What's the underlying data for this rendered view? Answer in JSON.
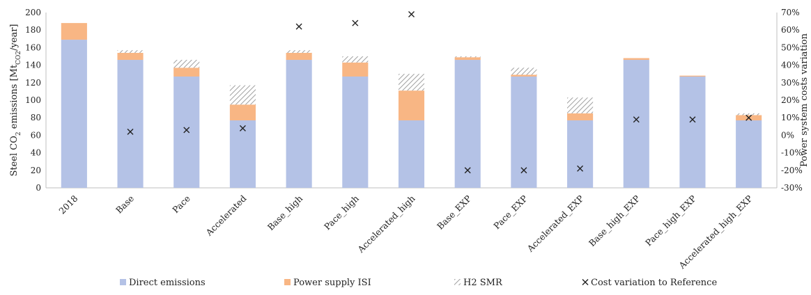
{
  "chart_data": {
    "type": "bar",
    "stacked": true,
    "categories": [
      "2018",
      "Base",
      "Pace",
      "Accelerated",
      "Base_high",
      "Pace_high",
      "Accelerated_high",
      "Base_EXP",
      "Pace_EXP",
      "Accelerated_EXP",
      "Base_high_EXP",
      "Pace_high_EXP",
      "Accelerated_high_EXP"
    ],
    "series": [
      {
        "name": "Direct emissions",
        "color": "#b4c2e6",
        "pattern": "solid",
        "values": [
          169,
          146,
          127,
          77,
          146,
          127,
          77,
          146,
          127,
          77,
          146,
          127,
          77
        ]
      },
      {
        "name": "Power supply ISI",
        "color": "#f8b684",
        "pattern": "solid",
        "values": [
          19,
          8,
          10,
          18,
          8,
          16,
          34,
          3,
          2,
          8,
          2,
          1,
          6
        ]
      },
      {
        "name": "H2 SMR",
        "color": "#b5b5b5",
        "pattern": "hatch",
        "values": [
          0,
          3,
          9,
          22,
          3,
          7,
          19,
          1,
          8,
          18,
          0,
          0,
          2
        ]
      }
    ],
    "secondary_series": {
      "name": "Cost variation to Reference",
      "marker": "x",
      "axis": "right",
      "values": [
        null,
        2,
        3,
        4,
        62,
        64,
        69,
        -20,
        -20,
        -19,
        9,
        9,
        10
      ]
    },
    "y_left": {
      "label_prefix": "Steel CO",
      "label_sub": "2",
      "label_mid": " emissions  [Mt",
      "label_sub2": "CO2",
      "label_suffix": "/year]",
      "ylim": [
        0,
        200
      ],
      "ticks": [
        "0",
        "20",
        "40",
        "60",
        "80",
        "100",
        "120",
        "140",
        "160",
        "180",
        "200"
      ]
    },
    "y_right": {
      "label": "Power system costs variation",
      "ylim": [
        -30,
        70
      ],
      "ticks": [
        "-30%",
        "-20%",
        "-10%",
        "0%",
        "10%",
        "20%",
        "30%",
        "40%",
        "50%",
        "60%",
        "70%"
      ]
    },
    "grid": false,
    "legend_position": "bottom"
  }
}
